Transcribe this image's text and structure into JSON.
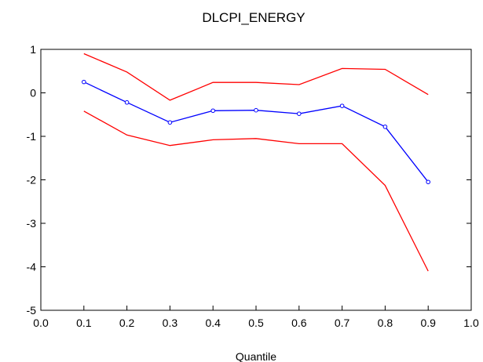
{
  "chart_data": {
    "type": "line",
    "title": "DLCPI_ENERGY",
    "xlabel": "Quantile",
    "ylabel": "",
    "xlim": [
      0.0,
      1.0
    ],
    "ylim": [
      -5,
      1
    ],
    "xticks": [
      "0.0",
      "0.1",
      "0.2",
      "0.3",
      "0.4",
      "0.5",
      "0.6",
      "0.7",
      "0.8",
      "0.9",
      "1.0"
    ],
    "yticks": [
      "1",
      "0",
      "-1",
      "-2",
      "-3",
      "-4",
      "-5"
    ],
    "grid": false,
    "legend": "none",
    "x": [
      0.1,
      0.2,
      0.3,
      0.4,
      0.5,
      0.6,
      0.7,
      0.8,
      0.9
    ],
    "series": [
      {
        "color": "#0000ff",
        "markers": true,
        "values": [
          0.25,
          -0.22,
          -0.68,
          -0.41,
          -0.4,
          -0.48,
          -0.3,
          -0.78,
          -2.05
        ]
      },
      {
        "color": "#ff0000",
        "markers": false,
        "values": [
          0.9,
          0.48,
          -0.17,
          0.24,
          0.24,
          0.19,
          0.56,
          0.54,
          -0.04
        ]
      },
      {
        "color": "#ff0000",
        "markers": false,
        "values": [
          -0.42,
          -0.97,
          -1.21,
          -1.08,
          -1.05,
          -1.17,
          -1.17,
          -2.13,
          -4.1
        ]
      }
    ]
  }
}
